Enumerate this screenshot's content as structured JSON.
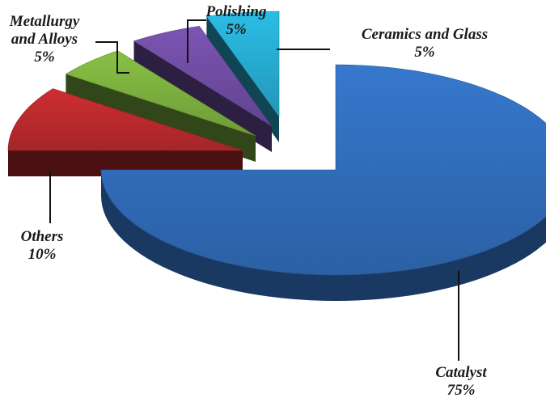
{
  "chart_data": {
    "type": "pie",
    "style": "3d-exploded",
    "slices": [
      {
        "label": "Catalyst",
        "value": 75,
        "pct_text": "75%",
        "color": "#2f68b2",
        "label_lines": [
          "Catalyst"
        ]
      },
      {
        "label": "Others",
        "value": 10,
        "pct_text": "10%",
        "color": "#b3282b",
        "label_lines": [
          "Others"
        ]
      },
      {
        "label": "Metallurgy and Alloys",
        "value": 5,
        "pct_text": "5%",
        "color": "#76a83c",
        "label_lines": [
          "Metallurgy",
          "and Alloys"
        ]
      },
      {
        "label": "Polishing",
        "value": 5,
        "pct_text": "5%",
        "color": "#6b4a9c",
        "label_lines": [
          "Polishing"
        ]
      },
      {
        "label": "Ceramics and Glass",
        "value": 5,
        "pct_text": "5%",
        "color": "#25a4c8",
        "label_lines": [
          "Ceramics and Glass"
        ]
      }
    ],
    "legend": "none"
  }
}
